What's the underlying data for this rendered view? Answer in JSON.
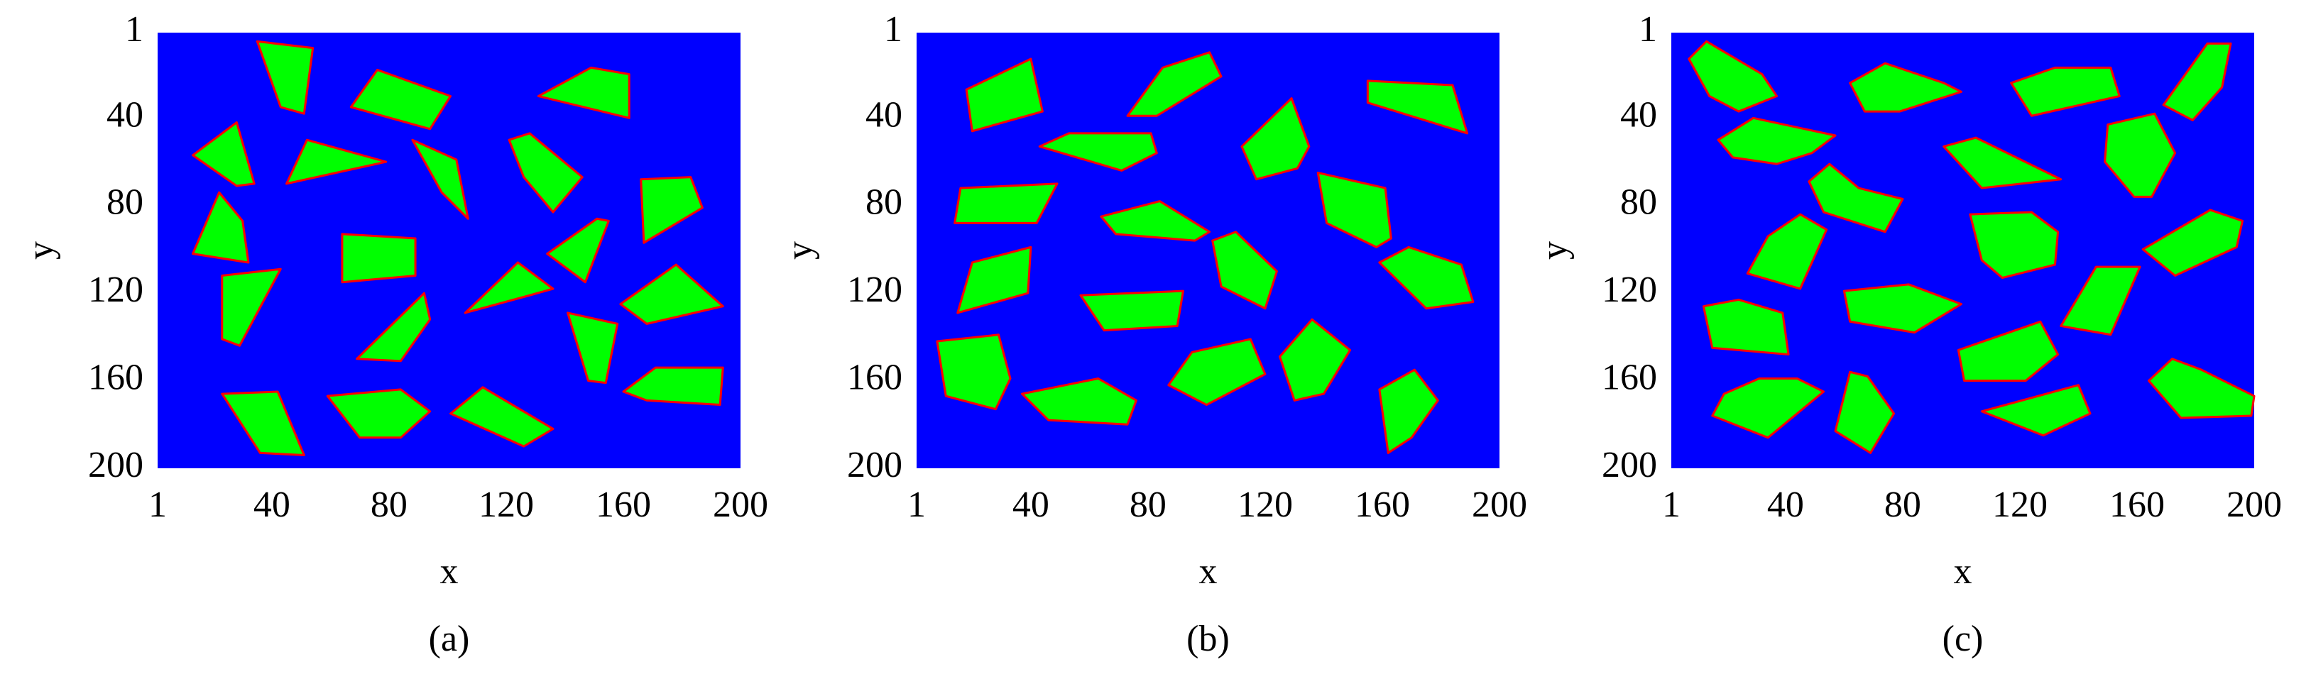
{
  "chart_data": [
    {
      "type": "image",
      "caption": "(a)",
      "xlabel": "x",
      "ylabel": "y",
      "xlim": [
        1,
        200
      ],
      "ylim": [
        1,
        200
      ],
      "y_inverted": true,
      "xticks": [
        1,
        40,
        80,
        120,
        160,
        200
      ],
      "yticks": [
        1,
        40,
        80,
        120,
        160,
        200
      ]
    },
    {
      "type": "image",
      "caption": "(b)",
      "xlabel": "x",
      "ylabel": "y",
      "xlim": [
        1,
        200
      ],
      "ylim": [
        1,
        200
      ],
      "y_inverted": true,
      "xticks": [
        1,
        40,
        80,
        120,
        160,
        200
      ],
      "yticks": [
        1,
        40,
        80,
        120,
        160,
        200
      ]
    },
    {
      "type": "image",
      "caption": "(c)",
      "xlabel": "x",
      "ylabel": "y",
      "xlim": [
        1,
        200
      ],
      "ylim": [
        1,
        200
      ],
      "y_inverted": true,
      "xticks": [
        1,
        40,
        80,
        120,
        160,
        200
      ],
      "yticks": [
        1,
        40,
        80,
        120,
        160,
        200
      ]
    }
  ]
}
